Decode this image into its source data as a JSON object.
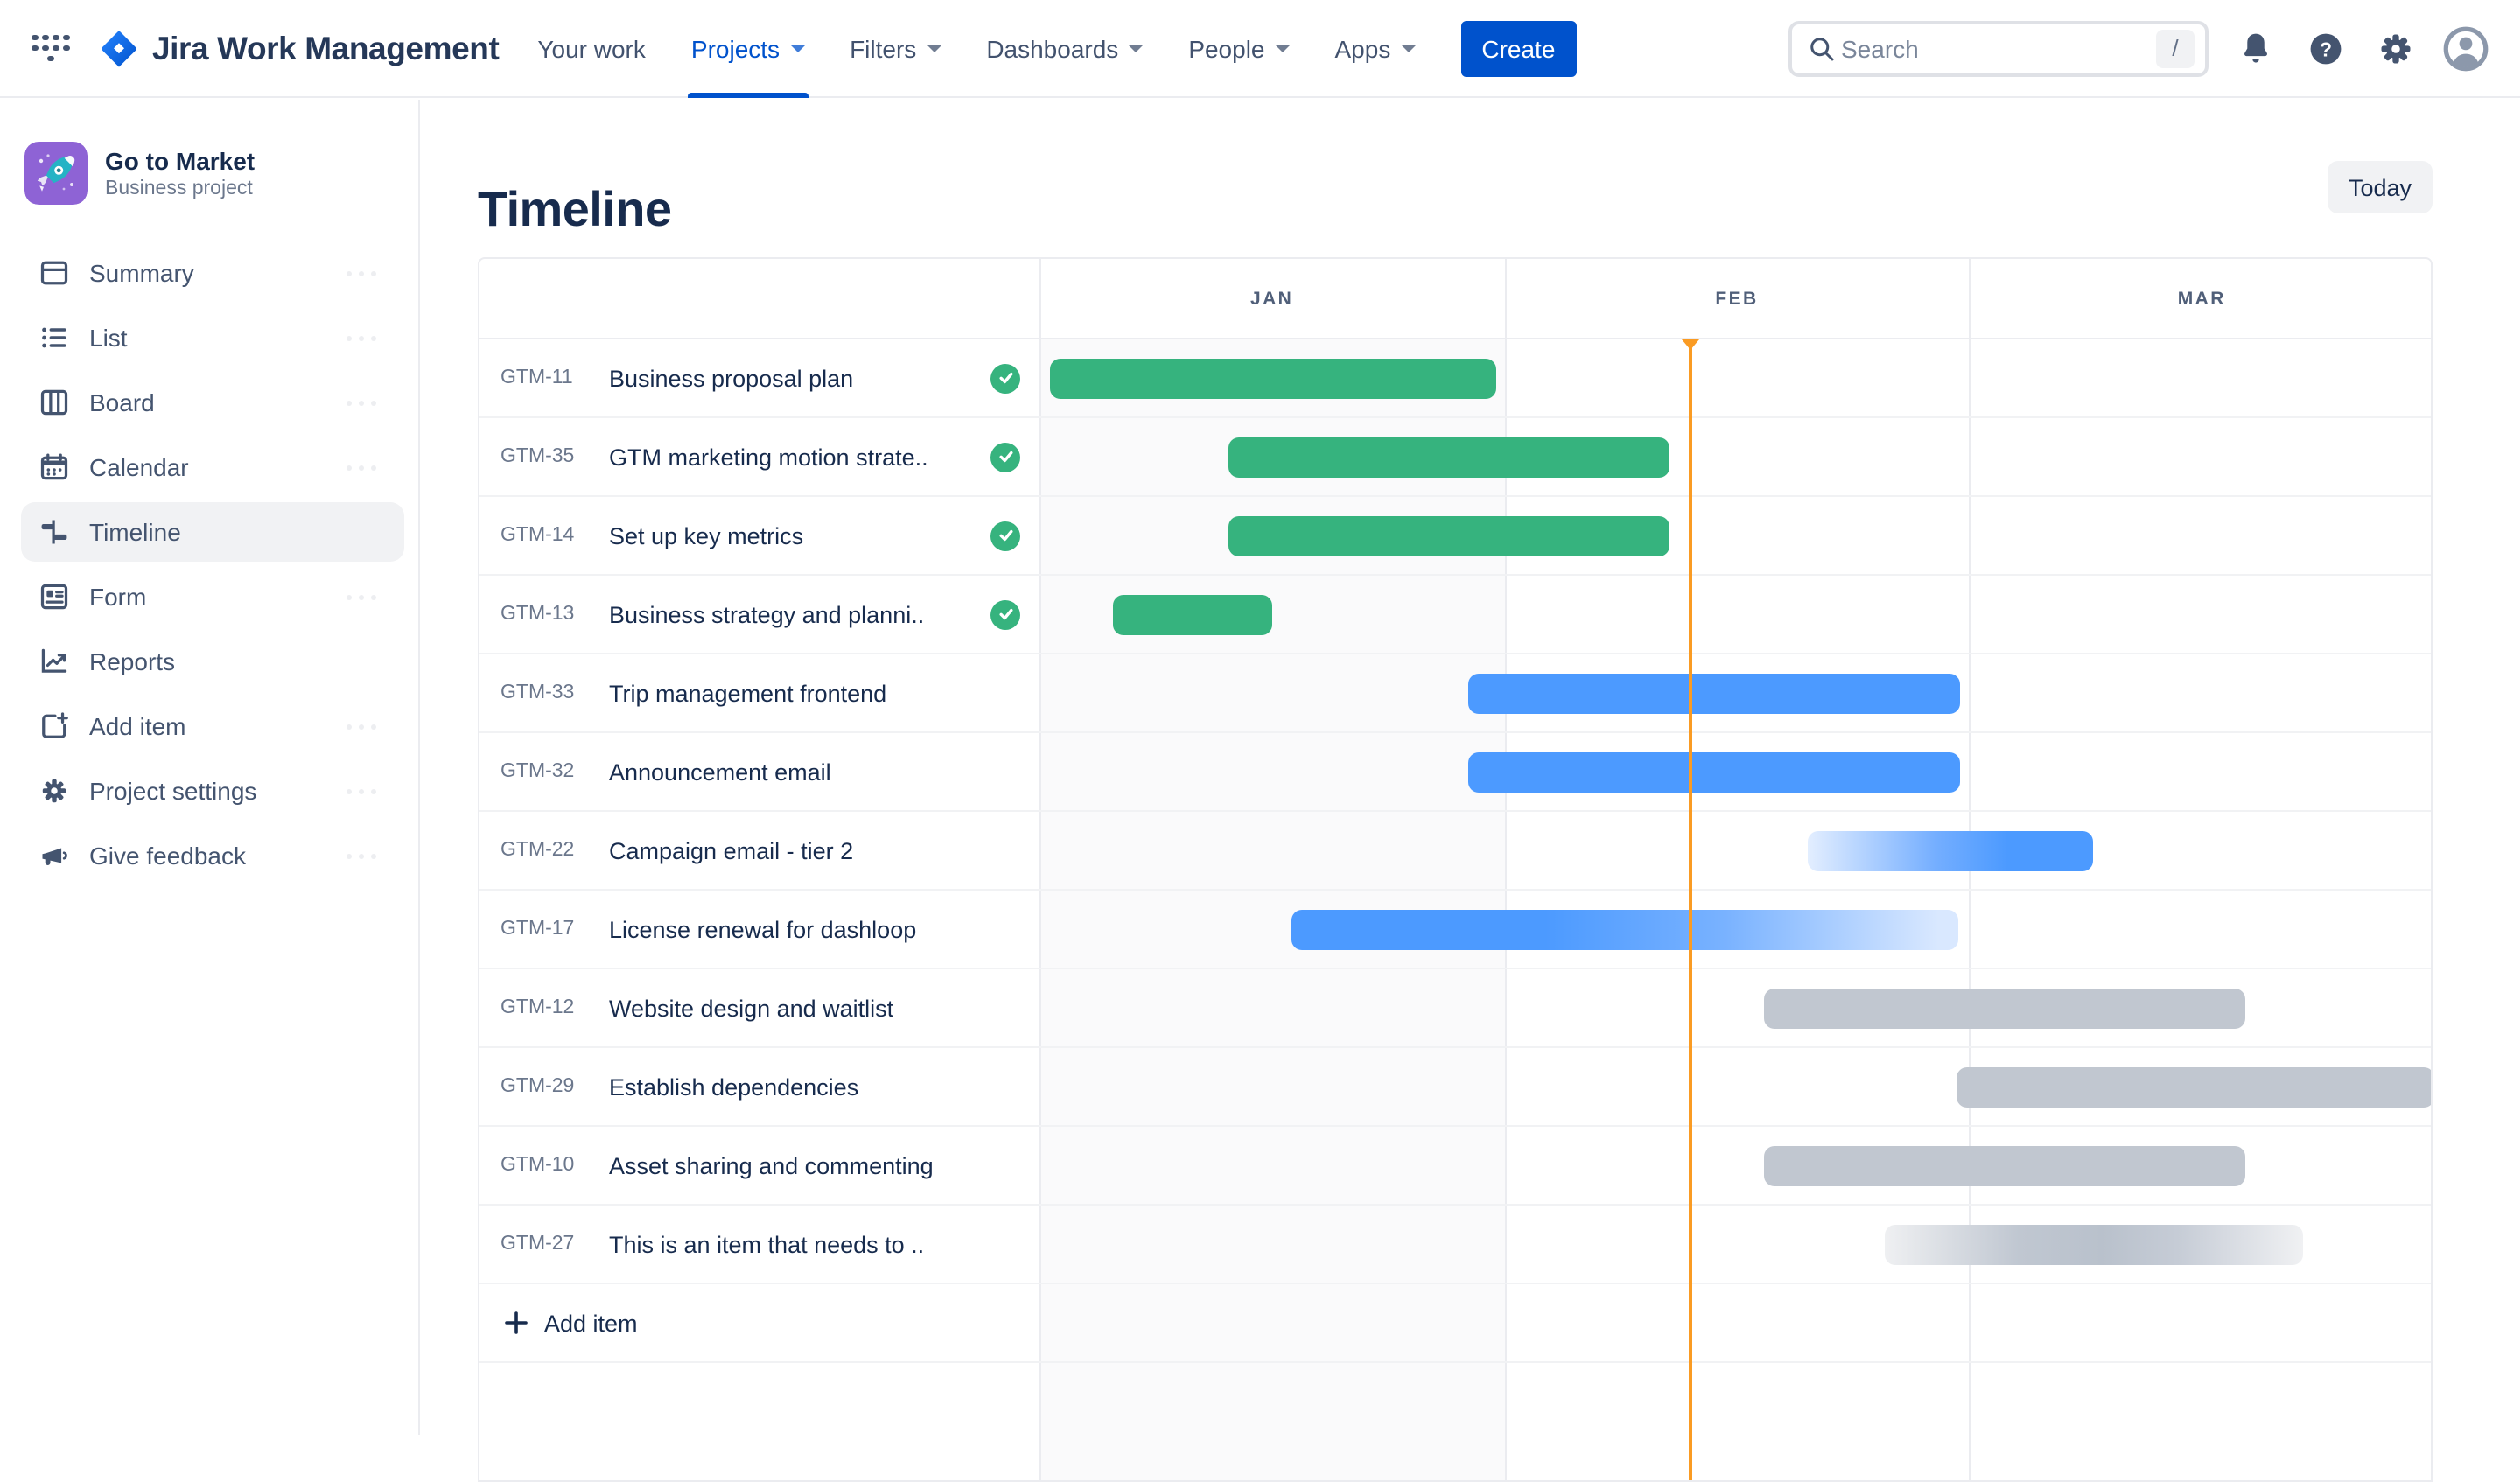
{
  "nav": {
    "brand": "Jira Work Management",
    "items": [
      {
        "label": "Your work",
        "active": false,
        "has_caret": false
      },
      {
        "label": "Projects",
        "active": true,
        "has_caret": true
      },
      {
        "label": "Filters",
        "active": false,
        "has_caret": true
      },
      {
        "label": "Dashboards",
        "active": false,
        "has_caret": true
      },
      {
        "label": "People",
        "active": false,
        "has_caret": true
      },
      {
        "label": "Apps",
        "active": false,
        "has_caret": true
      }
    ],
    "create_label": "Create",
    "search": {
      "placeholder": "Search",
      "shortcut_key": "/"
    }
  },
  "sidebar": {
    "project": {
      "name": "Go to Market",
      "type": "Business project",
      "avatar_icon": "rocket-icon",
      "avatar_color": "#8E63D5"
    },
    "items": [
      {
        "label": "Summary",
        "icon": "summary-icon",
        "selected": false
      },
      {
        "label": "List",
        "icon": "list-icon",
        "selected": false
      },
      {
        "label": "Board",
        "icon": "board-icon",
        "selected": false
      },
      {
        "label": "Calendar",
        "icon": "calendar-icon",
        "selected": false
      },
      {
        "label": "Timeline",
        "icon": "timeline-icon",
        "selected": true
      },
      {
        "label": "Form",
        "icon": "form-icon",
        "selected": false
      },
      {
        "label": "Reports",
        "icon": "reports-icon",
        "selected": false
      },
      {
        "label": "Add item",
        "icon": "add-item-icon",
        "selected": false
      },
      {
        "label": "Project settings",
        "icon": "gear-icon",
        "selected": false
      },
      {
        "label": "Give feedback",
        "icon": "megaphone-icon",
        "selected": false
      }
    ]
  },
  "main": {
    "title": "Timeline",
    "today_button_label": "Today",
    "add_item_label": "Add item",
    "chart_data": {
      "type": "gantt-timeline",
      "months": [
        "JAN",
        "FEB",
        "MAR"
      ],
      "today_position_pct": 46.7,
      "colors": {
        "done_green": "#36B37E",
        "in_progress_blue": "#4C9AFF",
        "todo_gray": "#C1C7D0",
        "today_marker": "#FA9B23"
      },
      "rows": [
        {
          "key": "GTM-11",
          "name": "Business proposal plan",
          "done": true,
          "bar": {
            "start_pct": 0.8,
            "width_pct": 31.9,
            "color": "green",
            "fade": "none"
          }
        },
        {
          "key": "GTM-35",
          "name": "GTM marketing motion strate..",
          "done": true,
          "bar": {
            "start_pct": 13.5,
            "width_pct": 31.7,
            "color": "green",
            "fade": "none"
          }
        },
        {
          "key": "GTM-14",
          "name": "Set up key metrics",
          "done": true,
          "bar": {
            "start_pct": 13.5,
            "width_pct": 31.7,
            "color": "green",
            "fade": "none"
          }
        },
        {
          "key": "GTM-13",
          "name": "Business strategy and planni..",
          "done": true,
          "bar": {
            "start_pct": 5.3,
            "width_pct": 11.4,
            "color": "green",
            "fade": "none"
          }
        },
        {
          "key": "GTM-33",
          "name": "Trip management frontend",
          "done": false,
          "bar": {
            "start_pct": 30.7,
            "width_pct": 35.3,
            "color": "blue",
            "fade": "none"
          }
        },
        {
          "key": "GTM-32",
          "name": "Announcement email",
          "done": false,
          "bar": {
            "start_pct": 30.7,
            "width_pct": 35.3,
            "color": "blue",
            "fade": "none"
          }
        },
        {
          "key": "GTM-22",
          "name": "Campaign email - tier 2",
          "done": false,
          "bar": {
            "start_pct": 55.1,
            "width_pct": 20.4,
            "color": "blue",
            "fade": "left"
          }
        },
        {
          "key": "GTM-17",
          "name": "License renewal for dashloop",
          "done": false,
          "bar": {
            "start_pct": 18.0,
            "width_pct": 47.9,
            "color": "blue",
            "fade": "right"
          }
        },
        {
          "key": "GTM-12",
          "name": "Website design and waitlist",
          "done": false,
          "bar": {
            "start_pct": 52.0,
            "width_pct": 34.4,
            "color": "gray",
            "fade": "none"
          }
        },
        {
          "key": "GTM-29",
          "name": "Establish dependencies",
          "done": false,
          "bar": {
            "start_pct": 65.7,
            "width_pct": 34.3,
            "color": "gray",
            "fade": "none"
          }
        },
        {
          "key": "GTM-10",
          "name": "Asset sharing and commenting",
          "done": false,
          "bar": {
            "start_pct": 52.0,
            "width_pct": 34.4,
            "color": "gray",
            "fade": "none"
          }
        },
        {
          "key": "GTM-27",
          "name": "This is an item that needs to ..",
          "done": false,
          "bar": {
            "start_pct": 60.6,
            "width_pct": 30.0,
            "color": "gray",
            "fade": "both"
          }
        }
      ]
    }
  }
}
